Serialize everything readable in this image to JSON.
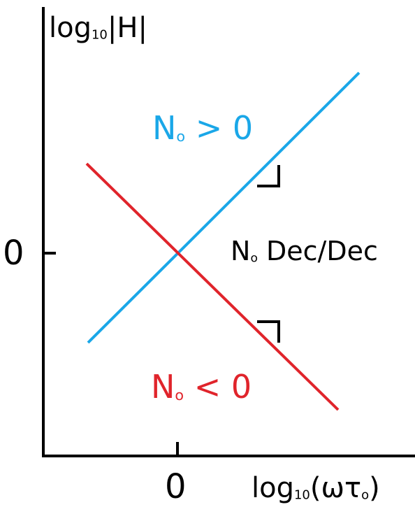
{
  "labels": {
    "y_axis_log": "log",
    "y_axis_sub": "10",
    "y_axis_abs": "|H|",
    "y_zero": "0",
    "x_zero": "0",
    "x_axis_log": "log",
    "x_axis_sub": "10",
    "x_axis_arg": "(ωτ",
    "x_axis_arg_sub": "o",
    "x_axis_close": ")",
    "slope_N": "N",
    "slope_sub": "o",
    "slope_text": " Dec/Dec",
    "pos_N": "N",
    "pos_sub": "o",
    "pos_rel": " > 0",
    "neg_N": "N",
    "neg_sub": "o",
    "neg_rel": " < 0"
  },
  "colors": {
    "positive": "#1aa7e8",
    "negative": "#e0242b",
    "axes": "#000000"
  }
}
